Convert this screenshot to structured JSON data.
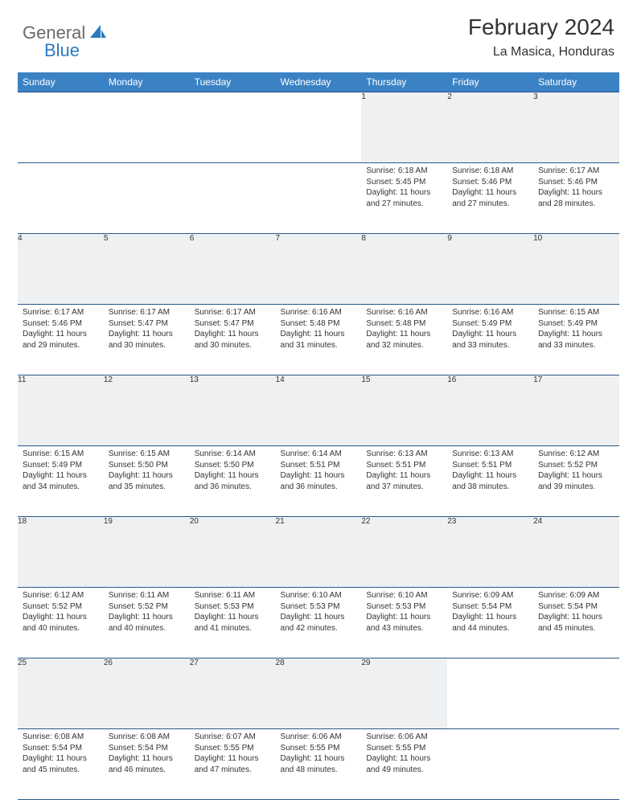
{
  "brand": {
    "part1": "General",
    "part2": "Blue",
    "logo_color": "#2a7bbf",
    "text_color": "#6a6a6a"
  },
  "title": "February 2024",
  "location": "La Masica, Honduras",
  "colors": {
    "header_bg": "#3b82c4",
    "header_text": "#ffffff",
    "daynum_bg": "#eef0f2",
    "border": "#2a5a8a",
    "body_text": "#333333",
    "page_bg": "#ffffff"
  },
  "fonts": {
    "title_size": 28,
    "location_size": 16,
    "weekday_size": 12,
    "daynum_size": 11,
    "cell_size": 10
  },
  "weekdays": [
    "Sunday",
    "Monday",
    "Tuesday",
    "Wednesday",
    "Thursday",
    "Friday",
    "Saturday"
  ],
  "weeks": [
    {
      "nums": [
        "",
        "",
        "",
        "",
        "1",
        "2",
        "3"
      ],
      "cells": [
        null,
        null,
        null,
        null,
        {
          "sunrise": "Sunrise: 6:18 AM",
          "sunset": "Sunset: 5:45 PM",
          "day1": "Daylight: 11 hours",
          "day2": "and 27 minutes."
        },
        {
          "sunrise": "Sunrise: 6:18 AM",
          "sunset": "Sunset: 5:46 PM",
          "day1": "Daylight: 11 hours",
          "day2": "and 27 minutes."
        },
        {
          "sunrise": "Sunrise: 6:17 AM",
          "sunset": "Sunset: 5:46 PM",
          "day1": "Daylight: 11 hours",
          "day2": "and 28 minutes."
        }
      ]
    },
    {
      "nums": [
        "4",
        "5",
        "6",
        "7",
        "8",
        "9",
        "10"
      ],
      "cells": [
        {
          "sunrise": "Sunrise: 6:17 AM",
          "sunset": "Sunset: 5:46 PM",
          "day1": "Daylight: 11 hours",
          "day2": "and 29 minutes."
        },
        {
          "sunrise": "Sunrise: 6:17 AM",
          "sunset": "Sunset: 5:47 PM",
          "day1": "Daylight: 11 hours",
          "day2": "and 30 minutes."
        },
        {
          "sunrise": "Sunrise: 6:17 AM",
          "sunset": "Sunset: 5:47 PM",
          "day1": "Daylight: 11 hours",
          "day2": "and 30 minutes."
        },
        {
          "sunrise": "Sunrise: 6:16 AM",
          "sunset": "Sunset: 5:48 PM",
          "day1": "Daylight: 11 hours",
          "day2": "and 31 minutes."
        },
        {
          "sunrise": "Sunrise: 6:16 AM",
          "sunset": "Sunset: 5:48 PM",
          "day1": "Daylight: 11 hours",
          "day2": "and 32 minutes."
        },
        {
          "sunrise": "Sunrise: 6:16 AM",
          "sunset": "Sunset: 5:49 PM",
          "day1": "Daylight: 11 hours",
          "day2": "and 33 minutes."
        },
        {
          "sunrise": "Sunrise: 6:15 AM",
          "sunset": "Sunset: 5:49 PM",
          "day1": "Daylight: 11 hours",
          "day2": "and 33 minutes."
        }
      ]
    },
    {
      "nums": [
        "11",
        "12",
        "13",
        "14",
        "15",
        "16",
        "17"
      ],
      "cells": [
        {
          "sunrise": "Sunrise: 6:15 AM",
          "sunset": "Sunset: 5:49 PM",
          "day1": "Daylight: 11 hours",
          "day2": "and 34 minutes."
        },
        {
          "sunrise": "Sunrise: 6:15 AM",
          "sunset": "Sunset: 5:50 PM",
          "day1": "Daylight: 11 hours",
          "day2": "and 35 minutes."
        },
        {
          "sunrise": "Sunrise: 6:14 AM",
          "sunset": "Sunset: 5:50 PM",
          "day1": "Daylight: 11 hours",
          "day2": "and 36 minutes."
        },
        {
          "sunrise": "Sunrise: 6:14 AM",
          "sunset": "Sunset: 5:51 PM",
          "day1": "Daylight: 11 hours",
          "day2": "and 36 minutes."
        },
        {
          "sunrise": "Sunrise: 6:13 AM",
          "sunset": "Sunset: 5:51 PM",
          "day1": "Daylight: 11 hours",
          "day2": "and 37 minutes."
        },
        {
          "sunrise": "Sunrise: 6:13 AM",
          "sunset": "Sunset: 5:51 PM",
          "day1": "Daylight: 11 hours",
          "day2": "and 38 minutes."
        },
        {
          "sunrise": "Sunrise: 6:12 AM",
          "sunset": "Sunset: 5:52 PM",
          "day1": "Daylight: 11 hours",
          "day2": "and 39 minutes."
        }
      ]
    },
    {
      "nums": [
        "18",
        "19",
        "20",
        "21",
        "22",
        "23",
        "24"
      ],
      "cells": [
        {
          "sunrise": "Sunrise: 6:12 AM",
          "sunset": "Sunset: 5:52 PM",
          "day1": "Daylight: 11 hours",
          "day2": "and 40 minutes."
        },
        {
          "sunrise": "Sunrise: 6:11 AM",
          "sunset": "Sunset: 5:52 PM",
          "day1": "Daylight: 11 hours",
          "day2": "and 40 minutes."
        },
        {
          "sunrise": "Sunrise: 6:11 AM",
          "sunset": "Sunset: 5:53 PM",
          "day1": "Daylight: 11 hours",
          "day2": "and 41 minutes."
        },
        {
          "sunrise": "Sunrise: 6:10 AM",
          "sunset": "Sunset: 5:53 PM",
          "day1": "Daylight: 11 hours",
          "day2": "and 42 minutes."
        },
        {
          "sunrise": "Sunrise: 6:10 AM",
          "sunset": "Sunset: 5:53 PM",
          "day1": "Daylight: 11 hours",
          "day2": "and 43 minutes."
        },
        {
          "sunrise": "Sunrise: 6:09 AM",
          "sunset": "Sunset: 5:54 PM",
          "day1": "Daylight: 11 hours",
          "day2": "and 44 minutes."
        },
        {
          "sunrise": "Sunrise: 6:09 AM",
          "sunset": "Sunset: 5:54 PM",
          "day1": "Daylight: 11 hours",
          "day2": "and 45 minutes."
        }
      ]
    },
    {
      "nums": [
        "25",
        "26",
        "27",
        "28",
        "29",
        "",
        ""
      ],
      "cells": [
        {
          "sunrise": "Sunrise: 6:08 AM",
          "sunset": "Sunset: 5:54 PM",
          "day1": "Daylight: 11 hours",
          "day2": "and 45 minutes."
        },
        {
          "sunrise": "Sunrise: 6:08 AM",
          "sunset": "Sunset: 5:54 PM",
          "day1": "Daylight: 11 hours",
          "day2": "and 46 minutes."
        },
        {
          "sunrise": "Sunrise: 6:07 AM",
          "sunset": "Sunset: 5:55 PM",
          "day1": "Daylight: 11 hours",
          "day2": "and 47 minutes."
        },
        {
          "sunrise": "Sunrise: 6:06 AM",
          "sunset": "Sunset: 5:55 PM",
          "day1": "Daylight: 11 hours",
          "day2": "and 48 minutes."
        },
        {
          "sunrise": "Sunrise: 6:06 AM",
          "sunset": "Sunset: 5:55 PM",
          "day1": "Daylight: 11 hours",
          "day2": "and 49 minutes."
        },
        null,
        null
      ]
    }
  ]
}
